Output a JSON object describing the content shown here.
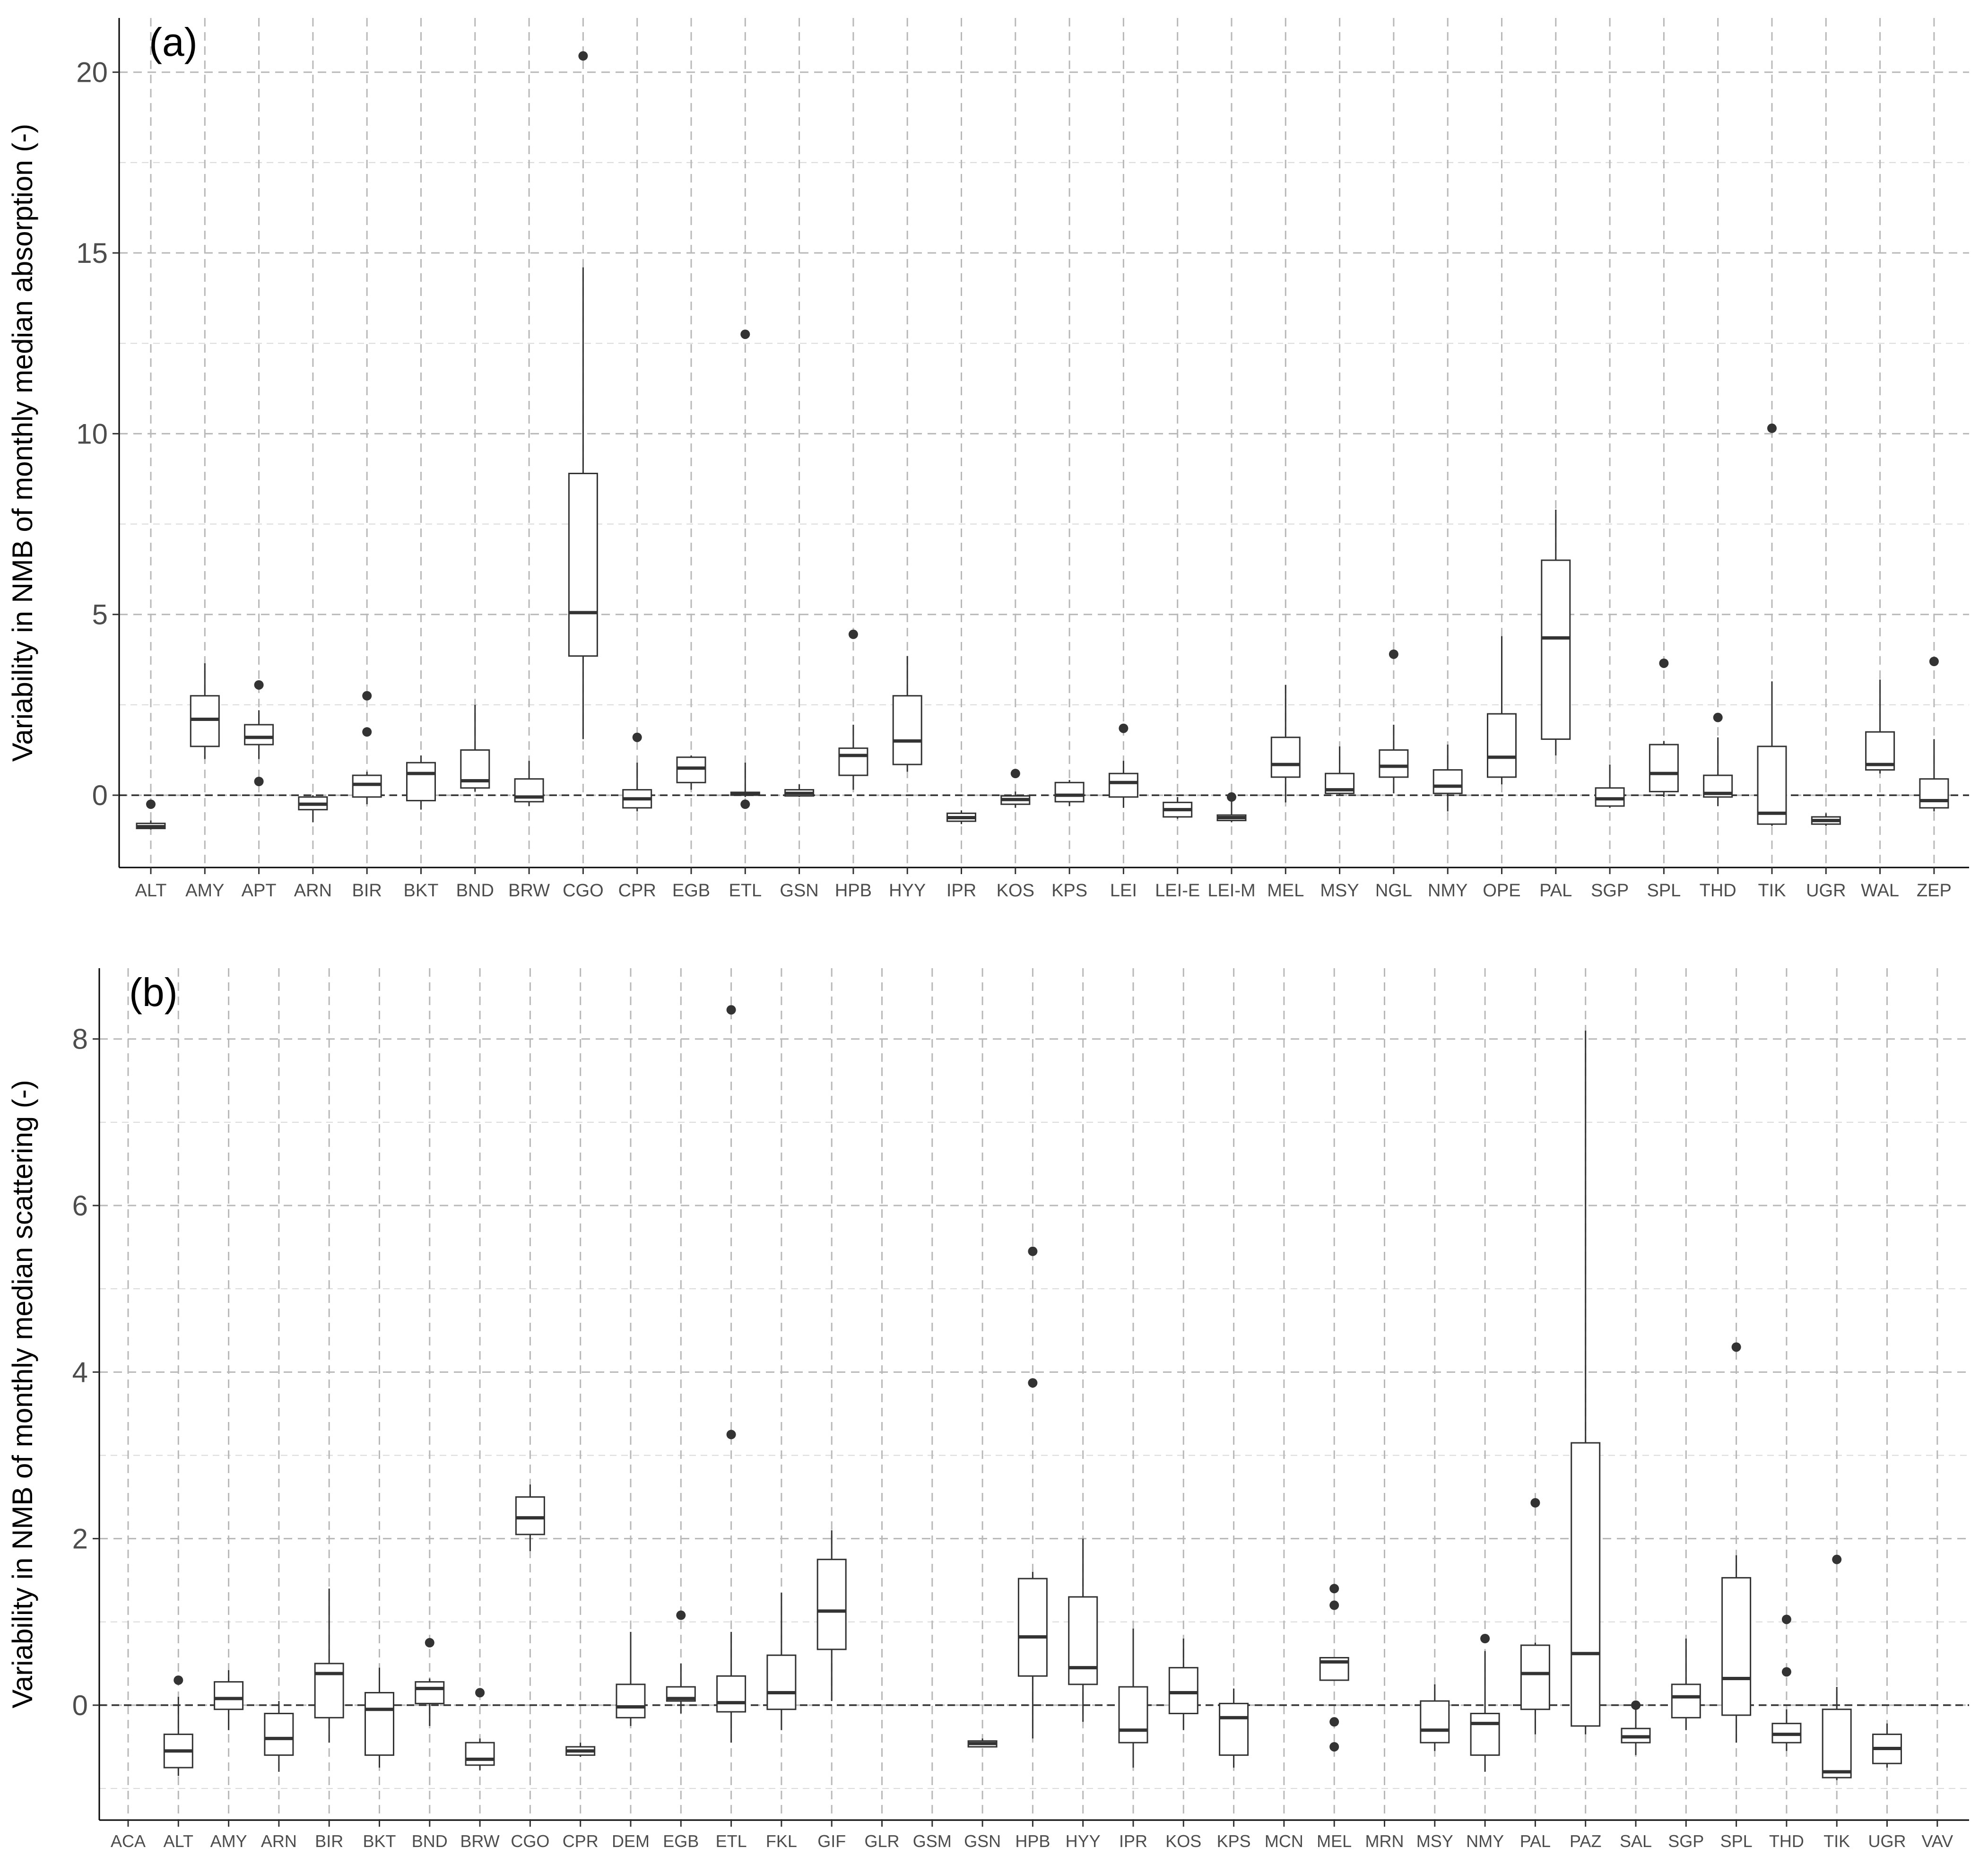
{
  "chart_data": [
    {
      "type": "box",
      "panel_label": "(a)",
      "title": "",
      "xlabel": "",
      "ylabel": "Variability in NMB of monthly median absorption (-)",
      "ylim": [
        -2.0,
        21.5
      ],
      "y_ticks": [
        0,
        5,
        10,
        15,
        20
      ],
      "grid": true,
      "reference_line": 0,
      "categories": [
        "ALT",
        "AMY",
        "APT",
        "ARN",
        "BIR",
        "BKT",
        "BND",
        "BRW",
        "CGO",
        "CPR",
        "EGB",
        "ETL",
        "GSN",
        "HPB",
        "HYY",
        "IPR",
        "KOS",
        "KPS",
        "LEI",
        "LEI-E",
        "LEI-M",
        "MEL",
        "MSY",
        "NGL",
        "NMY",
        "OPE",
        "PAL",
        "SGP",
        "SPL",
        "THD",
        "TIK",
        "UGR",
        "WAL",
        "ZEP"
      ],
      "boxes": [
        {
          "min": -0.95,
          "q1": -0.92,
          "median": -0.87,
          "q3": -0.78,
          "max": -0.7,
          "outliers": [
            -0.25
          ]
        },
        {
          "min": 1.0,
          "q1": 1.35,
          "median": 2.1,
          "q3": 2.75,
          "max": 3.65,
          "outliers": []
        },
        {
          "min": 1.0,
          "q1": 1.4,
          "median": 1.6,
          "q3": 1.95,
          "max": 2.35,
          "outliers": [
            3.05,
            0.38
          ]
        },
        {
          "min": -0.75,
          "q1": -0.4,
          "median": -0.25,
          "q3": -0.05,
          "max": 0.0,
          "outliers": []
        },
        {
          "min": -0.25,
          "q1": -0.05,
          "median": 0.3,
          "q3": 0.55,
          "max": 0.65,
          "outliers": [
            2.75,
            1.75
          ]
        },
        {
          "min": -0.4,
          "q1": -0.15,
          "median": 0.6,
          "q3": 0.9,
          "max": 1.1,
          "outliers": []
        },
        {
          "min": 0.1,
          "q1": 0.2,
          "median": 0.4,
          "q3": 1.25,
          "max": 2.5,
          "outliers": []
        },
        {
          "min": -0.3,
          "q1": -0.18,
          "median": -0.05,
          "q3": 0.45,
          "max": 0.95,
          "outliers": []
        },
        {
          "min": 1.55,
          "q1": 3.85,
          "median": 5.05,
          "q3": 8.9,
          "max": 14.6,
          "outliers": [
            20.45
          ]
        },
        {
          "min": -0.45,
          "q1": -0.35,
          "median": -0.1,
          "q3": 0.15,
          "max": 0.9,
          "outliers": [
            1.6
          ]
        },
        {
          "min": 0.15,
          "q1": 0.35,
          "median": 0.75,
          "q3": 1.05,
          "max": 1.1,
          "outliers": []
        },
        {
          "min": -0.05,
          "q1": 0.0,
          "median": 0.05,
          "q3": 0.08,
          "max": 0.9,
          "outliers": [
            12.75,
            -0.25
          ]
        },
        {
          "min": -0.05,
          "q1": -0.02,
          "median": 0.05,
          "q3": 0.15,
          "max": 0.3,
          "outliers": []
        },
        {
          "min": 0.15,
          "q1": 0.55,
          "median": 1.1,
          "q3": 1.3,
          "max": 1.95,
          "outliers": [
            4.45
          ]
        },
        {
          "min": 0.65,
          "q1": 0.85,
          "median": 1.5,
          "q3": 2.75,
          "max": 3.85,
          "outliers": []
        },
        {
          "min": -0.8,
          "q1": -0.72,
          "median": -0.62,
          "q3": -0.5,
          "max": -0.42,
          "outliers": []
        },
        {
          "min": -0.35,
          "q1": -0.25,
          "median": -0.12,
          "q3": -0.02,
          "max": 0.1,
          "outliers": [
            0.6
          ]
        },
        {
          "min": -0.3,
          "q1": -0.18,
          "median": 0.0,
          "q3": 0.35,
          "max": 0.42,
          "outliers": []
        },
        {
          "min": -0.35,
          "q1": -0.05,
          "median": 0.35,
          "q3": 0.6,
          "max": 0.95,
          "outliers": [
            1.85
          ]
        },
        {
          "min": -0.65,
          "q1": -0.6,
          "median": -0.4,
          "q3": -0.2,
          "max": -0.05,
          "outliers": []
        },
        {
          "min": -0.75,
          "q1": -0.7,
          "median": -0.62,
          "q3": -0.55,
          "max": -0.1,
          "outliers": [
            -0.05
          ]
        },
        {
          "min": -0.2,
          "q1": 0.5,
          "median": 0.85,
          "q3": 1.6,
          "max": 3.05,
          "outliers": []
        },
        {
          "min": 0.0,
          "q1": 0.05,
          "median": 0.15,
          "q3": 0.6,
          "max": 1.35,
          "outliers": []
        },
        {
          "min": 0.05,
          "q1": 0.5,
          "median": 0.8,
          "q3": 1.25,
          "max": 1.95,
          "outliers": [
            3.9
          ]
        },
        {
          "min": -0.45,
          "q1": 0.05,
          "median": 0.25,
          "q3": 0.7,
          "max": 1.4,
          "outliers": []
        },
        {
          "min": 0.3,
          "q1": 0.5,
          "median": 1.05,
          "q3": 2.25,
          "max": 4.4,
          "outliers": []
        },
        {
          "min": 1.1,
          "q1": 1.55,
          "median": 4.35,
          "q3": 6.5,
          "max": 7.9,
          "outliers": []
        },
        {
          "min": -0.35,
          "q1": -0.3,
          "median": -0.1,
          "q3": 0.2,
          "max": 0.85,
          "outliers": []
        },
        {
          "min": -0.05,
          "q1": 0.1,
          "median": 0.6,
          "q3": 1.4,
          "max": 1.5,
          "outliers": [
            3.65
          ]
        },
        {
          "min": -0.3,
          "q1": -0.05,
          "median": 0.05,
          "q3": 0.55,
          "max": 1.6,
          "outliers": [
            2.15
          ]
        },
        {
          "min": -0.85,
          "q1": -0.8,
          "median": -0.5,
          "q3": 1.35,
          "max": 3.15,
          "outliers": [
            10.15
          ]
        },
        {
          "min": -0.85,
          "q1": -0.8,
          "median": -0.7,
          "q3": -0.6,
          "max": -0.5,
          "outliers": []
        },
        {
          "min": 0.6,
          "q1": 0.7,
          "median": 0.85,
          "q3": 1.75,
          "max": 3.2,
          "outliers": []
        },
        {
          "min": -0.45,
          "q1": -0.35,
          "median": -0.15,
          "q3": 0.45,
          "max": 1.55,
          "outliers": [
            3.7
          ]
        }
      ]
    },
    {
      "type": "box",
      "panel_label": "(b)",
      "title": "",
      "xlabel": "",
      "ylabel": "Variability in NMB of monthly median scattering (-)",
      "ylim": [
        -1.38,
        8.85
      ],
      "y_ticks": [
        0,
        2,
        4,
        6,
        8
      ],
      "grid": true,
      "reference_line": 0,
      "categories": [
        "ACA",
        "ALT",
        "AMY",
        "ARN",
        "BIR",
        "BKT",
        "BND",
        "BRW",
        "CGO",
        "CPR",
        "DEM",
        "EGB",
        "ETL",
        "FKL",
        "GIF",
        "GLR",
        "GSM",
        "GSN",
        "HPB",
        "HYY",
        "IPR",
        "KOS",
        "KPS",
        "MCN",
        "MEL",
        "MRN",
        "MSY",
        "NMY",
        "PAL",
        "PAZ",
        "SAL",
        "SGP",
        "SPL",
        "THD",
        "TIK",
        "UGR",
        "VAV"
      ],
      "boxes": [
        null,
        {
          "min": -0.85,
          "q1": -0.75,
          "median": -0.55,
          "q3": -0.35,
          "max": 0.1,
          "outliers": [
            0.3
          ]
        },
        {
          "min": -0.3,
          "q1": -0.05,
          "median": 0.08,
          "q3": 0.28,
          "max": 0.42,
          "outliers": []
        },
        {
          "min": -0.8,
          "q1": -0.6,
          "median": -0.4,
          "q3": -0.1,
          "max": 0.05,
          "outliers": []
        },
        {
          "min": -0.45,
          "q1": -0.15,
          "median": 0.38,
          "q3": 0.5,
          "max": 1.4,
          "outliers": []
        },
        {
          "min": -0.75,
          "q1": -0.6,
          "median": -0.05,
          "q3": 0.15,
          "max": 0.45,
          "outliers": []
        },
        {
          "min": -0.25,
          "q1": 0.02,
          "median": 0.2,
          "q3": 0.28,
          "max": 0.32,
          "outliers": [
            0.75
          ]
        },
        {
          "min": -0.78,
          "q1": -0.72,
          "median": -0.65,
          "q3": -0.45,
          "max": -0.4,
          "outliers": [
            0.15
          ]
        },
        {
          "min": 1.85,
          "q1": 2.05,
          "median": 2.25,
          "q3": 2.5,
          "max": 2.65,
          "outliers": []
        },
        {
          "min": -0.62,
          "q1": -0.6,
          "median": -0.55,
          "q3": -0.5,
          "max": -0.45,
          "outliers": []
        },
        {
          "min": -0.25,
          "q1": -0.15,
          "median": -0.02,
          "q3": 0.25,
          "max": 0.88,
          "outliers": []
        },
        {
          "min": -0.1,
          "q1": 0.05,
          "median": 0.08,
          "q3": 0.22,
          "max": 0.5,
          "outliers": [
            1.08
          ]
        },
        {
          "min": -0.45,
          "q1": -0.08,
          "median": 0.03,
          "q3": 0.35,
          "max": 0.88,
          "outliers": [
            8.35,
            3.25
          ]
        },
        {
          "min": -0.3,
          "q1": -0.05,
          "median": 0.15,
          "q3": 0.6,
          "max": 1.35,
          "outliers": []
        },
        {
          "min": 0.05,
          "q1": 0.67,
          "median": 1.13,
          "q3": 1.75,
          "max": 2.1,
          "outliers": []
        },
        null,
        null,
        {
          "min": -0.5,
          "q1": -0.5,
          "median": -0.46,
          "q3": -0.43,
          "max": -0.4,
          "outliers": []
        },
        {
          "min": -0.4,
          "q1": 0.35,
          "median": 0.82,
          "q3": 1.52,
          "max": 1.6,
          "outliers": [
            5.45,
            3.87
          ]
        },
        {
          "min": -0.2,
          "q1": 0.25,
          "median": 0.45,
          "q3": 1.3,
          "max": 2.0,
          "outliers": []
        },
        {
          "min": -0.75,
          "q1": -0.45,
          "median": -0.3,
          "q3": 0.22,
          "max": 0.92,
          "outliers": []
        },
        {
          "min": -0.3,
          "q1": -0.1,
          "median": 0.15,
          "q3": 0.45,
          "max": 0.8,
          "outliers": []
        },
        {
          "min": -0.75,
          "q1": -0.6,
          "median": -0.15,
          "q3": 0.02,
          "max": 0.2,
          "outliers": []
        },
        null,
        {
          "min": 0.3,
          "q1": 0.3,
          "median": 0.52,
          "q3": 0.57,
          "max": 0.57,
          "outliers": [
            1.4,
            1.2,
            -0.2,
            -0.5
          ]
        },
        null,
        {
          "min": -0.55,
          "q1": -0.45,
          "median": -0.3,
          "q3": 0.05,
          "max": 0.25,
          "outliers": []
        },
        {
          "min": -0.8,
          "q1": -0.6,
          "median": -0.22,
          "q3": -0.1,
          "max": 0.65,
          "outliers": [
            0.8
          ]
        },
        {
          "min": -0.35,
          "q1": -0.05,
          "median": 0.38,
          "q3": 0.72,
          "max": 0.75,
          "outliers": [
            2.43
          ]
        },
        {
          "min": -0.35,
          "q1": -0.25,
          "median": 0.62,
          "q3": 3.15,
          "max": 8.1,
          "outliers": []
        },
        {
          "min": -0.6,
          "q1": -0.45,
          "median": -0.38,
          "q3": -0.28,
          "max": -0.05,
          "outliers": [
            0.0
          ]
        },
        {
          "min": -0.3,
          "q1": -0.15,
          "median": 0.1,
          "q3": 0.25,
          "max": 0.8,
          "outliers": []
        },
        {
          "min": -0.45,
          "q1": -0.12,
          "median": 0.32,
          "q3": 1.53,
          "max": 1.8,
          "outliers": [
            4.3
          ]
        },
        {
          "min": -0.55,
          "q1": -0.45,
          "median": -0.35,
          "q3": -0.22,
          "max": -0.05,
          "outliers": [
            1.03,
            0.4
          ]
        },
        {
          "min": -0.9,
          "q1": -0.87,
          "median": -0.8,
          "q3": -0.05,
          "max": 0.22,
          "outliers": [
            1.75
          ]
        },
        {
          "min": -0.75,
          "q1": -0.7,
          "median": -0.52,
          "q3": -0.35,
          "max": -0.22,
          "outliers": []
        },
        null
      ]
    }
  ]
}
